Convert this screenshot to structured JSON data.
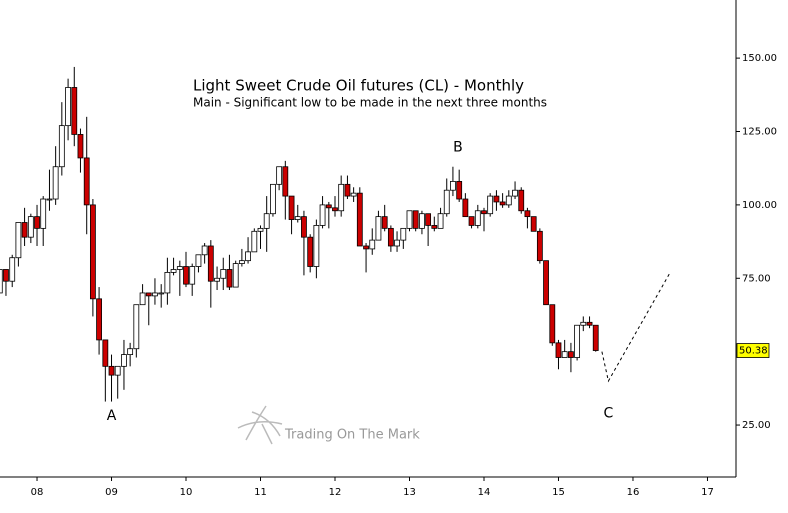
{
  "chart_data": {
    "type": "candlestick",
    "title": "Light Sweet Crude Oil futures (CL) - Monthly",
    "subtitle": "Main - Significant low to be made in the next three months",
    "watermark": "Trading On The Mark",
    "up_color": "#ffffff",
    "down_color": "#cc0000",
    "xlim": [
      2007.503,
      2017.383
    ],
    "ylim": [
      7.3,
      169.8
    ],
    "xticks": [
      {
        "value": 2008,
        "label": "08"
      },
      {
        "value": 2009,
        "label": "09"
      },
      {
        "value": 2010,
        "label": "10"
      },
      {
        "value": 2011,
        "label": "11"
      },
      {
        "value": 2012,
        "label": "12"
      },
      {
        "value": 2013,
        "label": "13"
      },
      {
        "value": 2014,
        "label": "14"
      },
      {
        "value": 2015,
        "label": "15"
      },
      {
        "value": 2016,
        "label": "16"
      },
      {
        "value": 2017,
        "label": "17"
      }
    ],
    "yticks": [
      {
        "value": 25,
        "label": "25.00"
      },
      {
        "value": 75,
        "label": "75.00"
      },
      {
        "value": 100,
        "label": "100.00"
      },
      {
        "value": 125,
        "label": "125.00"
      },
      {
        "value": 150,
        "label": "150.00"
      }
    ],
    "last_price": 50.38,
    "x": [
      2007.5,
      2007.583,
      2007.667,
      2007.75,
      2007.833,
      2007.917,
      2008,
      2008.083,
      2008.167,
      2008.25,
      2008.333,
      2008.417,
      2008.5,
      2008.583,
      2008.667,
      2008.75,
      2008.833,
      2008.917,
      2009,
      2009.083,
      2009.167,
      2009.25,
      2009.333,
      2009.417,
      2009.5,
      2009.583,
      2009.667,
      2009.75,
      2009.833,
      2009.917,
      2010,
      2010.083,
      2010.167,
      2010.25,
      2010.333,
      2010.417,
      2010.5,
      2010.583,
      2010.667,
      2010.75,
      2010.833,
      2010.917,
      2011,
      2011.083,
      2011.167,
      2011.25,
      2011.333,
      2011.417,
      2011.5,
      2011.583,
      2011.667,
      2011.75,
      2011.833,
      2011.917,
      2012,
      2012.083,
      2012.167,
      2012.25,
      2012.333,
      2012.417,
      2012.5,
      2012.583,
      2012.667,
      2012.75,
      2012.833,
      2012.917,
      2013,
      2013.083,
      2013.167,
      2013.25,
      2013.333,
      2013.417,
      2013.5,
      2013.583,
      2013.667,
      2013.75,
      2013.833,
      2013.917,
      2014,
      2014.083,
      2014.167,
      2014.25,
      2014.333,
      2014.417,
      2014.5,
      2014.583,
      2014.667,
      2014.75,
      2014.833,
      2014.917,
      2015,
      2015.083,
      2015.167,
      2015.25,
      2015.333,
      2015.417,
      2015.5
    ],
    "open": [
      70,
      78,
      74,
      82,
      94,
      89,
      96,
      92,
      102,
      102,
      113,
      127,
      140,
      124,
      116,
      100,
      68,
      54,
      45,
      42,
      45,
      49,
      51,
      66,
      70,
      69,
      70,
      70,
      77,
      78,
      79,
      73,
      79,
      83,
      86,
      74,
      75,
      78,
      72,
      80,
      81,
      84,
      91,
      92,
      97,
      107,
      113,
      103,
      95,
      96,
      89,
      79,
      93,
      100,
      99,
      98,
      107,
      103,
      104,
      86,
      85,
      88,
      96,
      92,
      86,
      88,
      92,
      98,
      92,
      97,
      93,
      92,
      97,
      105,
      108,
      102,
      96,
      93,
      98,
      97,
      103,
      101,
      100,
      103,
      105,
      98,
      96,
      91,
      81,
      66,
      53,
      48,
      50,
      48,
      59,
      60,
      59
    ],
    "high": [
      78,
      78,
      83,
      94,
      99,
      97,
      100,
      103,
      112,
      120,
      135,
      143,
      147,
      126,
      130,
      102,
      72,
      54,
      49,
      44,
      54,
      53,
      66,
      73,
      70,
      75,
      73,
      82,
      82,
      81,
      84,
      80,
      83,
      87,
      88,
      79,
      82,
      83,
      81,
      85,
      89,
      92,
      93,
      103,
      107,
      113,
      115,
      103,
      100,
      98,
      90,
      95,
      103,
      101,
      103,
      110,
      110,
      106,
      106,
      87,
      92,
      98,
      100,
      93,
      91,
      92,
      98,
      98,
      98,
      97,
      96,
      99,
      109,
      113,
      112,
      104,
      96,
      100,
      99,
      104,
      105,
      104,
      105,
      108,
      106,
      99,
      96,
      92,
      81,
      66,
      54,
      54,
      53,
      59,
      62,
      62,
      59
    ],
    "low": [
      70,
      69,
      72,
      79,
      86,
      87,
      86,
      86,
      98,
      100,
      110,
      122,
      120,
      111,
      90,
      62,
      49,
      33,
      33,
      34,
      37,
      45,
      48,
      66,
      59,
      66,
      65,
      66,
      76,
      69,
      72,
      69,
      77,
      80,
      65,
      71,
      71,
      71,
      72,
      79,
      80,
      84,
      85,
      84,
      96,
      105,
      95,
      90,
      94,
      76,
      77,
      75,
      92,
      92,
      96,
      96,
      102,
      101,
      86,
      77,
      83,
      88,
      91,
      84,
      84,
      85,
      91,
      91,
      90,
      86,
      91,
      92,
      96,
      103,
      101,
      96,
      92,
      92,
      91,
      96,
      98,
      99,
      99,
      102,
      97,
      92,
      91,
      80,
      66,
      52,
      44,
      49,
      43,
      47,
      57,
      58,
      50
    ],
    "close": [
      78,
      74,
      82,
      94,
      89,
      96,
      92,
      102,
      102,
      113,
      127,
      140,
      124,
      116,
      100,
      68,
      54,
      45,
      42,
      45,
      49,
      51,
      66,
      70,
      69,
      70,
      70,
      77,
      78,
      79,
      73,
      79,
      83,
      86,
      74,
      75,
      78,
      72,
      80,
      81,
      84,
      91,
      92,
      97,
      107,
      113,
      103,
      95,
      96,
      89,
      79,
      93,
      100,
      99,
      98,
      107,
      103,
      104,
      86,
      85,
      88,
      96,
      92,
      86,
      88,
      92,
      98,
      92,
      97,
      93,
      92,
      97,
      105,
      108,
      102,
      96,
      93,
      98,
      97,
      103,
      101,
      100,
      103,
      105,
      98,
      96,
      91,
      81,
      66,
      53,
      48,
      50,
      48,
      59,
      60,
      59,
      50.38
    ],
    "projection": {
      "x": [
        2015.583,
        2015.67,
        2016.5
      ],
      "y": [
        50,
        40,
        77
      ]
    },
    "annotations": [
      {
        "text": "A",
        "x": 2009.0,
        "y": 28
      },
      {
        "text": "B",
        "x": 2013.65,
        "y": 119.5
      },
      {
        "text": "C",
        "x": 2015.67,
        "y": 29
      }
    ]
  }
}
